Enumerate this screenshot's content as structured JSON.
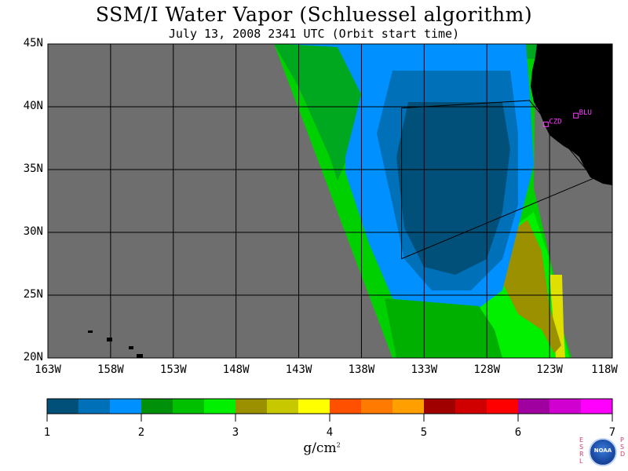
{
  "title": "SSM/I Water Vapor (Schluessel algorithm)",
  "subtitle": "July 13, 2008  2341 UTC  (Orbit start time)",
  "map": {
    "lat_labels": [
      "45N",
      "40N",
      "35N",
      "30N",
      "25N",
      "20N"
    ],
    "lon_labels": [
      "163W",
      "158W",
      "153W",
      "148W",
      "143W",
      "138W",
      "133W",
      "128W",
      "123W",
      "118W"
    ],
    "stations": [
      {
        "name": "CZD",
        "lon": -123.3,
        "lat": 38.6
      },
      {
        "name": "BLU",
        "lon": -120.9,
        "lat": 39.3
      }
    ],
    "domain_outline_latlon": [
      [
        -134.8,
        39.9
      ],
      [
        -124.6,
        40.5
      ],
      [
        -119.5,
        34.3
      ],
      [
        -134.8,
        27.9
      ]
    ],
    "colors": {
      "no_data": "#6e6e6e",
      "land": "#000000",
      "grid": "#000000",
      "station": "#ff3cff"
    }
  },
  "colorbar": {
    "tick_labels": [
      "1",
      "2",
      "3",
      "4",
      "5",
      "6",
      "7"
    ],
    "unit": "g/cm",
    "unit_sup": "2",
    "colors": [
      "#00507a",
      "#0070b8",
      "#0090ff",
      "#00900a",
      "#00c000",
      "#00f000",
      "#9a9000",
      "#c8c800",
      "#ffff00",
      "#ff5000",
      "#ff7a00",
      "#ff9f00",
      "#a00000",
      "#d00000",
      "#ff0000",
      "#a000a0",
      "#d000d0",
      "#ff00ff"
    ]
  },
  "logo": {
    "left_letters": "ESRL",
    "right_letters": "PSD",
    "text": "NOAA"
  }
}
